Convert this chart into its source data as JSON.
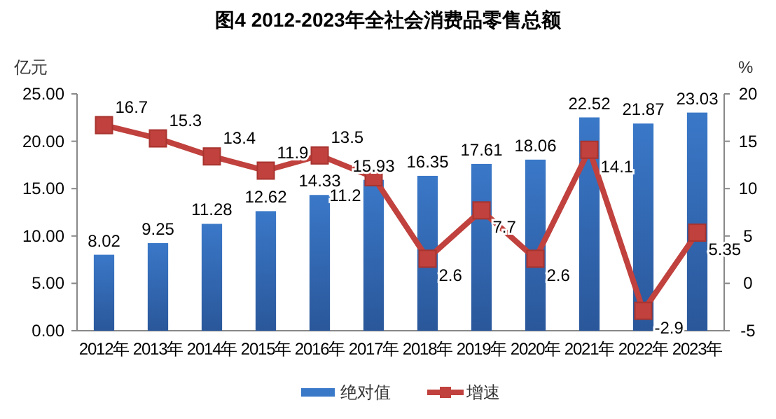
{
  "chart_data": {
    "type": "bar",
    "title": "图4  2012-2023年全社会消费品零售总额",
    "ylabel": "亿元",
    "y2label": "%",
    "categories": [
      "2012年",
      "2013年",
      "2014年",
      "2015年",
      "2016年",
      "2017年",
      "2018年",
      "2019年",
      "2020年",
      "2021年",
      "2022年",
      "2023年"
    ],
    "ylim": [
      0,
      25
    ],
    "yticks": [
      {
        "value": 0,
        "label": "0.00"
      },
      {
        "value": 5,
        "label": "5.00"
      },
      {
        "value": 10,
        "label": "10.00"
      },
      {
        "value": 15,
        "label": "15.00"
      },
      {
        "value": 20,
        "label": "20.00"
      },
      {
        "value": 25,
        "label": "25.00"
      }
    ],
    "y2lim": [
      -5,
      20
    ],
    "y2ticks": [
      -5,
      0,
      5,
      10,
      15,
      20
    ],
    "series": [
      {
        "name": "绝对值",
        "color": "#3a78c8",
        "values": [
          8.02,
          9.25,
          11.28,
          12.62,
          14.33,
          15.93,
          16.35,
          17.61,
          18.06,
          22.52,
          21.87,
          23.03
        ]
      },
      {
        "name": "增速",
        "type": "line",
        "axis": "y2",
        "color": "#c0413d",
        "marker": "square",
        "values": [
          16.7,
          15.3,
          13.4,
          11.9,
          13.5,
          11.2,
          2.6,
          7.7,
          2.6,
          14.1,
          -2.9,
          5.35
        ]
      }
    ],
    "data_labels": true,
    "grid": false,
    "legend": "bottom"
  }
}
